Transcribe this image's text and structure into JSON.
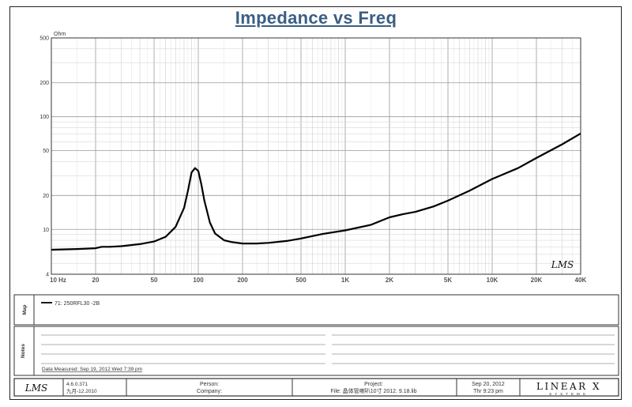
{
  "chart_data": {
    "type": "line",
    "title": "Impedance vs Freq",
    "ylabel": "Ohm",
    "xscale": "log",
    "yscale": "log",
    "xlim": [
      10,
      40000
    ],
    "ylim": [
      4,
      500
    ],
    "grid": true,
    "x_tick_labels": [
      {
        "value": 10,
        "label": "10  Hz"
      },
      {
        "value": 20,
        "label": "20"
      },
      {
        "value": 50,
        "label": "50"
      },
      {
        "value": 100,
        "label": "100"
      },
      {
        "value": 200,
        "label": "200"
      },
      {
        "value": 500,
        "label": "500"
      },
      {
        "value": 1000,
        "label": "1K"
      },
      {
        "value": 2000,
        "label": "2K"
      },
      {
        "value": 5000,
        "label": "5K"
      },
      {
        "value": 10000,
        "label": "10K"
      },
      {
        "value": 20000,
        "label": "20K"
      },
      {
        "value": 40000,
        "label": "40K"
      }
    ],
    "y_tick_labels": [
      {
        "value": 500,
        "label": "500"
      },
      {
        "value": 200,
        "label": "200"
      },
      {
        "value": 100,
        "label": "100"
      },
      {
        "value": 50,
        "label": "50"
      },
      {
        "value": 20,
        "label": "20"
      },
      {
        "value": 10,
        "label": "10"
      },
      {
        "value": 4,
        "label": "4"
      }
    ],
    "series": [
      {
        "name": "71: 250RFL30 -2B",
        "color": "#000000",
        "x": [
          10,
          15,
          20,
          22,
          25,
          30,
          40,
          50,
          60,
          70,
          80,
          85,
          90,
          95,
          100,
          105,
          110,
          120,
          130,
          150,
          170,
          200,
          250,
          300,
          400,
          500,
          700,
          1000,
          1500,
          2000,
          2500,
          3000,
          4000,
          5000,
          7000,
          10000,
          15000,
          20000,
          30000,
          40000
        ],
        "y": [
          6.6,
          6.7,
          6.8,
          7.0,
          7.0,
          7.1,
          7.4,
          7.8,
          8.6,
          10.5,
          15.5,
          22,
          32,
          35,
          33,
          25,
          18,
          11.5,
          9.2,
          8.0,
          7.7,
          7.5,
          7.5,
          7.6,
          7.9,
          8.3,
          9.1,
          9.8,
          11,
          12.8,
          13.7,
          14.3,
          16,
          18,
          22,
          28,
          35,
          43,
          57,
          71
        ]
      }
    ]
  },
  "logo_text": "LMS",
  "map_label": "Map",
  "notes_label": "Notes",
  "legend_entry": "71: 250RFL30 -2B",
  "date_measured": "Data Measured: Sep 19, 2012  Wed  7:39 pm",
  "footer": {
    "version": "4.6.0.371",
    "version_date": "九月-12.2010",
    "person_label": "Person:",
    "company_label": "Company:",
    "project_label": "Project:",
    "file_text": "File: 晶体管喇叭10寸 2012. 9.18.lib",
    "date": "Sep 20, 2012",
    "time": "Thr  9:23 pm",
    "brand": "LINEAR X",
    "brand_sub": "SYSTEMS"
  }
}
